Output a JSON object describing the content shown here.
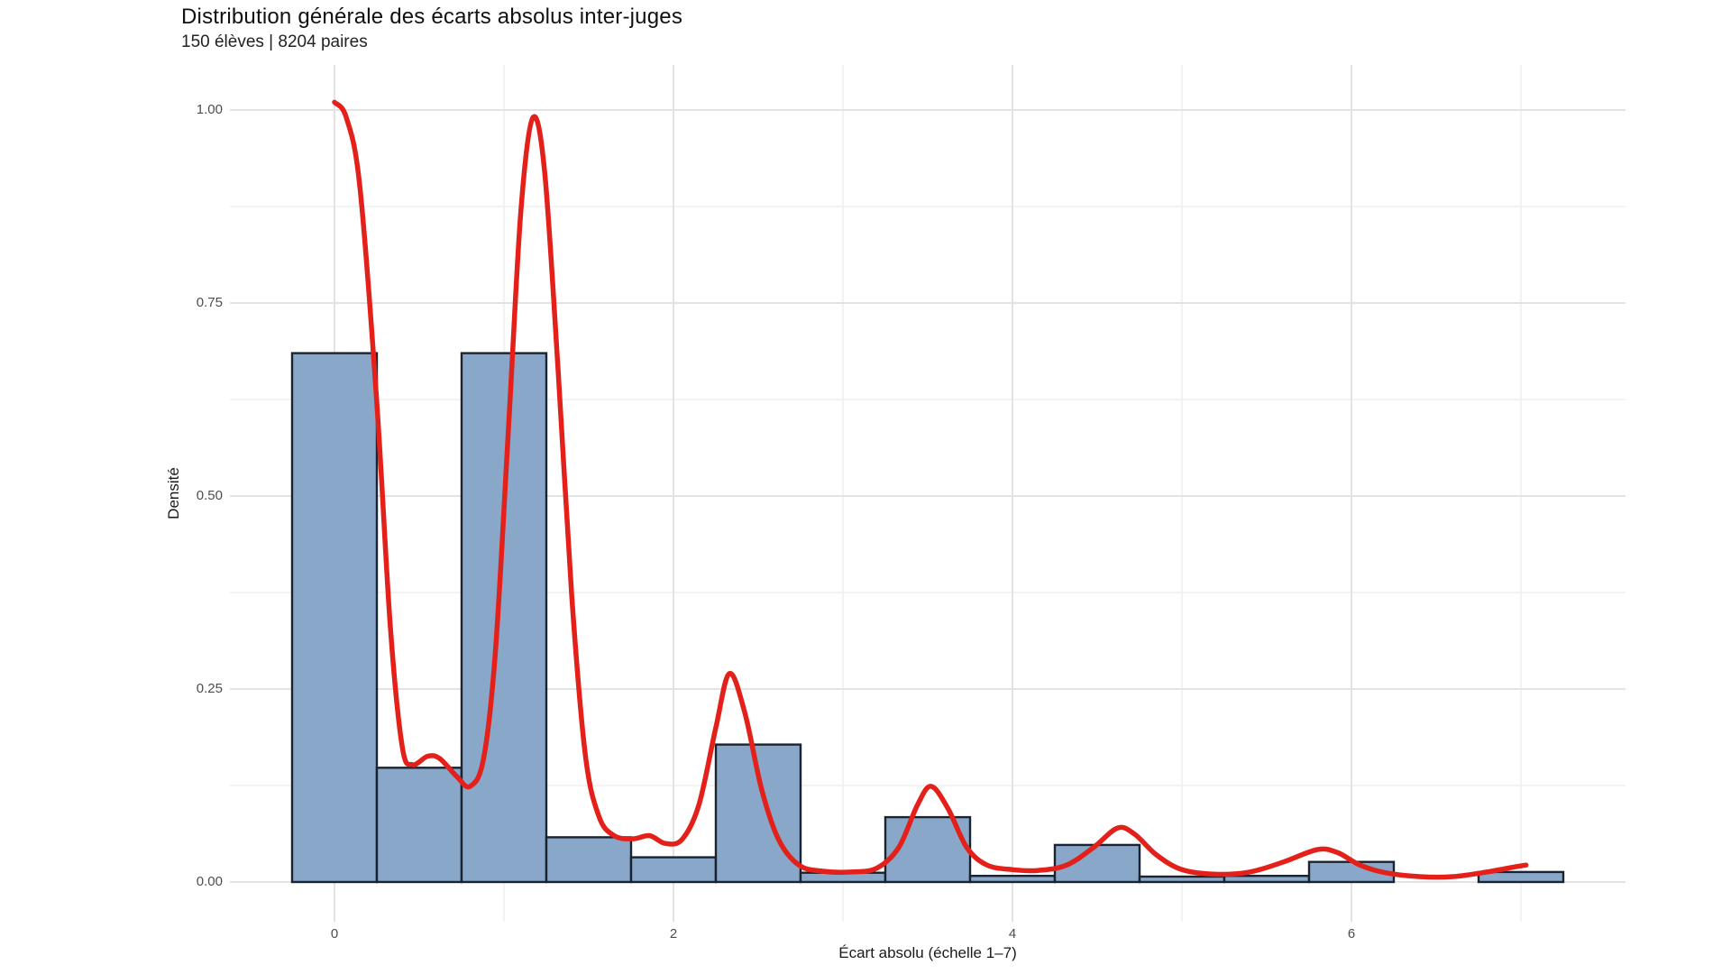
{
  "chart_data": {
    "type": "histogram_with_density_curve",
    "title": "Distribution générale des écarts absolus inter-juges",
    "subtitle": "150 élèves | 8204 paires",
    "xlabel": "Écart absolu (échelle 1–7)",
    "ylabel": "Densité",
    "x_ticks": [
      0,
      2,
      4,
      6
    ],
    "x_minor_ticks": [
      1,
      3,
      5,
      7
    ],
    "y_ticks": [
      0.0,
      0.25,
      0.5,
      0.75,
      1.0
    ],
    "y_tick_labels": [
      "0.00",
      "0.25",
      "0.50",
      "0.75",
      "1.00"
    ],
    "y_minor_ticks": [
      0.125,
      0.375,
      0.625,
      0.875
    ],
    "xlim": [
      -0.625,
      7.625
    ],
    "ylim": [
      -0.052,
      1.06
    ],
    "grid": "major-and-minor",
    "legend": "none",
    "histogram": {
      "bin_width": 0.5,
      "centers": [
        0,
        0.5,
        1.0,
        1.5,
        2.0,
        2.5,
        3.0,
        3.5,
        4.0,
        4.5,
        5.0,
        5.5,
        6.0,
        6.5,
        7.0
      ],
      "densities": [
        0.685,
        0.148,
        0.685,
        0.058,
        0.032,
        0.178,
        0.012,
        0.084,
        0.008,
        0.048,
        0.007,
        0.008,
        0.026,
        0.0,
        0.013
      ]
    },
    "density_curve": [
      [
        0.0,
        1.01
      ],
      [
        0.07,
        0.99
      ],
      [
        0.15,
        0.9
      ],
      [
        0.25,
        0.62
      ],
      [
        0.33,
        0.33
      ],
      [
        0.4,
        0.175
      ],
      [
        0.46,
        0.152
      ],
      [
        0.55,
        0.163
      ],
      [
        0.62,
        0.16
      ],
      [
        0.72,
        0.137
      ],
      [
        0.8,
        0.124
      ],
      [
        0.88,
        0.16
      ],
      [
        0.95,
        0.3
      ],
      [
        1.03,
        0.6
      ],
      [
        1.1,
        0.87
      ],
      [
        1.17,
        0.99
      ],
      [
        1.24,
        0.92
      ],
      [
        1.32,
        0.66
      ],
      [
        1.4,
        0.37
      ],
      [
        1.48,
        0.165
      ],
      [
        1.56,
        0.085
      ],
      [
        1.65,
        0.06
      ],
      [
        1.76,
        0.056
      ],
      [
        1.86,
        0.06
      ],
      [
        1.95,
        0.05
      ],
      [
        2.05,
        0.055
      ],
      [
        2.15,
        0.1
      ],
      [
        2.25,
        0.2
      ],
      [
        2.33,
        0.27
      ],
      [
        2.42,
        0.22
      ],
      [
        2.52,
        0.12
      ],
      [
        2.62,
        0.055
      ],
      [
        2.74,
        0.022
      ],
      [
        2.88,
        0.014
      ],
      [
        3.05,
        0.013
      ],
      [
        3.2,
        0.018
      ],
      [
        3.33,
        0.045
      ],
      [
        3.44,
        0.1
      ],
      [
        3.52,
        0.124
      ],
      [
        3.62,
        0.095
      ],
      [
        3.73,
        0.045
      ],
      [
        3.85,
        0.022
      ],
      [
        4.0,
        0.016
      ],
      [
        4.15,
        0.015
      ],
      [
        4.32,
        0.022
      ],
      [
        4.48,
        0.045
      ],
      [
        4.62,
        0.07
      ],
      [
        4.72,
        0.062
      ],
      [
        4.85,
        0.035
      ],
      [
        5.0,
        0.016
      ],
      [
        5.2,
        0.01
      ],
      [
        5.4,
        0.013
      ],
      [
        5.6,
        0.026
      ],
      [
        5.8,
        0.042
      ],
      [
        5.92,
        0.038
      ],
      [
        6.05,
        0.022
      ],
      [
        6.2,
        0.012
      ],
      [
        6.4,
        0.007
      ],
      [
        6.6,
        0.007
      ],
      [
        6.8,
        0.013
      ],
      [
        6.95,
        0.019
      ],
      [
        7.03,
        0.022
      ]
    ],
    "colors": {
      "background": "#ffffff",
      "bar_fill": "#89a7c8",
      "bar_stroke": "#1a2430",
      "curve": "#e4201b",
      "grid_major": "#e3e3e3",
      "grid_minor": "#efefef",
      "tick_text": "#4d4d4d",
      "axis_title_text": "#1a1a1a",
      "title_text": "#111111"
    }
  }
}
